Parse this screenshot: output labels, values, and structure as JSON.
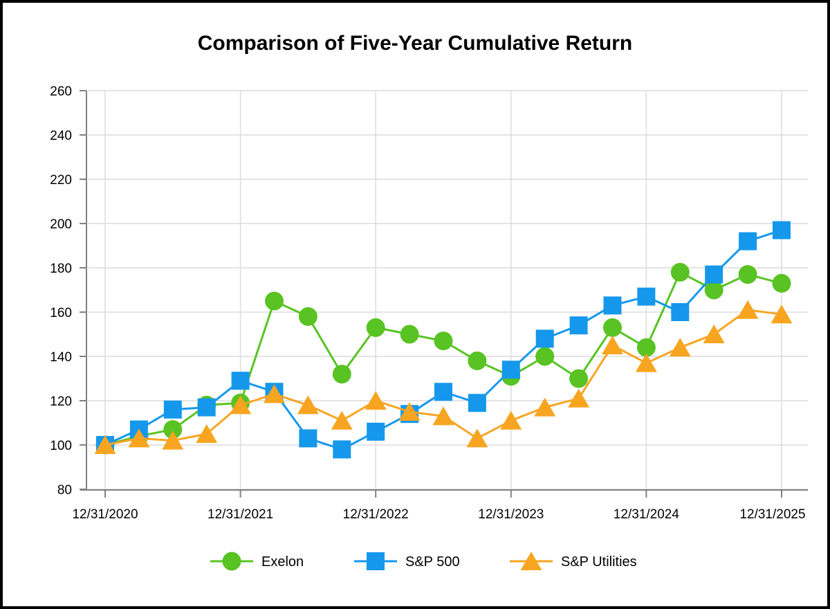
{
  "window": {
    "background": "#ffffff",
    "border_color": "#000000"
  },
  "style": {
    "grid_color": "#dcdcdc",
    "axis_color": "#808080",
    "text_color": "#000000",
    "title_color": "#000000"
  },
  "chart_data": {
    "type": "line",
    "title": "Comparison of Five-Year Cumulative Return",
    "xlabel": "",
    "ylabel": "",
    "x_tick_labels": [
      "12/31/2020",
      "12/31/2021",
      "12/31/2022",
      "12/31/2023",
      "12/31/2024",
      "12/31/2025"
    ],
    "points_per_year": 4,
    "point_count": 21,
    "y_ticks": [
      260,
      240,
      220,
      200,
      180,
      160,
      140,
      120,
      100,
      80
    ],
    "ylim": [
      80,
      260
    ],
    "grid": true,
    "legend_position": "bottom",
    "series": [
      {
        "name": "Exelon",
        "marker": "circle",
        "color": "#58C322",
        "values": [
          100,
          104,
          107,
          118,
          119,
          165,
          158,
          132,
          153,
          150,
          147,
          138,
          131,
          140,
          130,
          153,
          144,
          178,
          170,
          177,
          173
        ]
      },
      {
        "name": "S&P 500",
        "marker": "square",
        "color": "#1598EC",
        "values": [
          100,
          107,
          116,
          117,
          129,
          124,
          103,
          98,
          106,
          114,
          124,
          119,
          134,
          148,
          154,
          163,
          167,
          160,
          177,
          192,
          197
        ]
      },
      {
        "name": "S&P Utilities",
        "marker": "triangle",
        "color": "#F7A521",
        "values": [
          100,
          103,
          102,
          105,
          118,
          123,
          118,
          111,
          120,
          115,
          113,
          103,
          111,
          117,
          121,
          145,
          137,
          144,
          150,
          161,
          159
        ]
      }
    ]
  }
}
